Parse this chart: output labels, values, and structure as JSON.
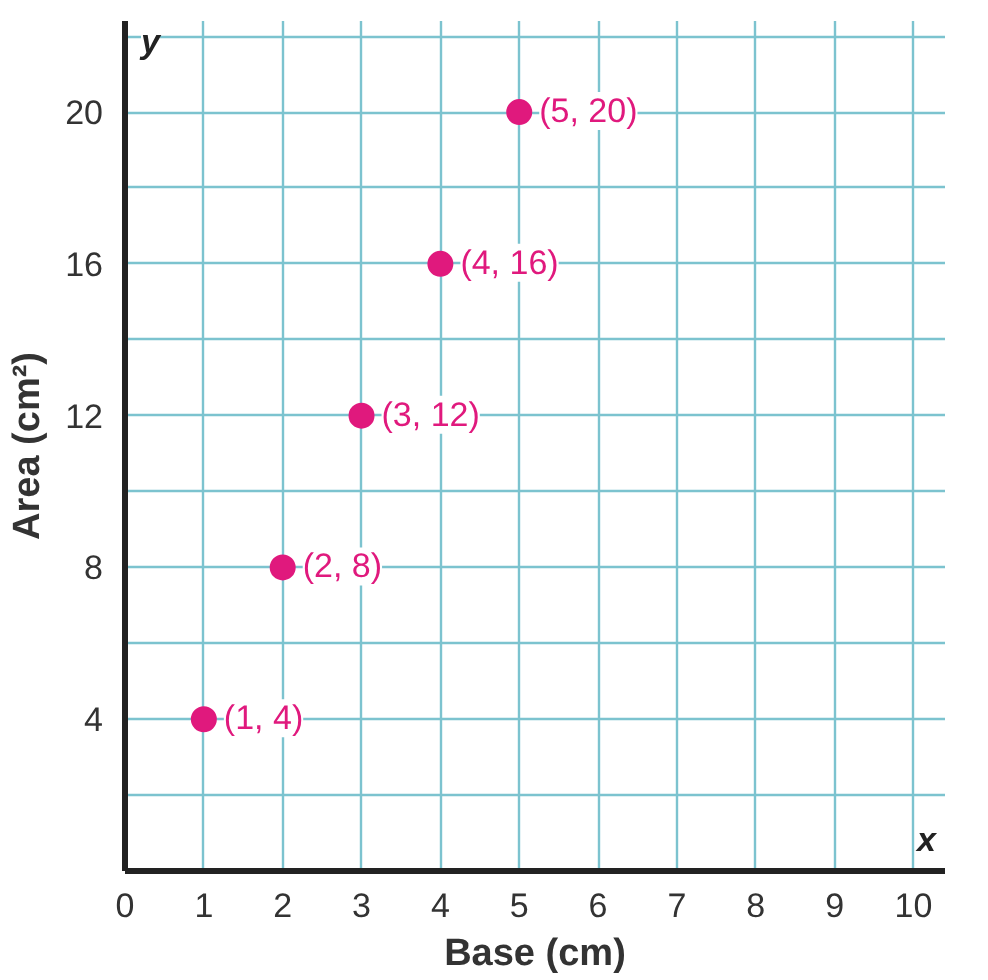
{
  "chart_data": {
    "type": "scatter",
    "xlabel": "Base (cm)",
    "ylabel": "Area (cm²)",
    "x": [
      1,
      2,
      3,
      4,
      5
    ],
    "series": [
      {
        "color": "#e0197d",
        "values": [
          4,
          8,
          12,
          16,
          20
        ],
        "value_labels": [
          "(1, 4)",
          "(2, 8)",
          "(3, 12)",
          "(4, 16)",
          "(5, 20)"
        ]
      }
    ],
    "xlim": [
      0,
      10.4
    ],
    "ylim": [
      0,
      22.4
    ],
    "xticks": [
      0,
      1,
      2,
      3,
      4,
      5,
      6,
      7,
      8,
      9,
      10
    ],
    "yticks": [
      {
        "value": 2,
        "label": null
      },
      4,
      {
        "value": 6,
        "label": null
      },
      8,
      {
        "value": 10,
        "label": null
      },
      12,
      {
        "value": 14,
        "label": null
      },
      16,
      {
        "value": 18,
        "label": null
      },
      20,
      {
        "value": 22,
        "label": null
      }
    ],
    "grid": true,
    "marker": "circle",
    "annotations": [
      "y",
      "x"
    ]
  }
}
